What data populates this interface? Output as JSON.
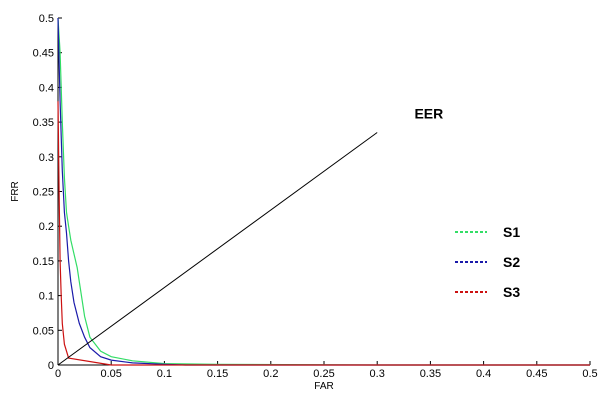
{
  "chart_data": {
    "type": "line",
    "title": "",
    "xlabel": "FAR",
    "ylabel": "FRR",
    "xlim": [
      0,
      0.5
    ],
    "ylim": [
      0,
      0.5
    ],
    "x_ticks": [
      "0",
      "0.05",
      "0.1",
      "0.15",
      "0.2",
      "0.25",
      "0.3",
      "0.35",
      "0.4",
      "0.45",
      "0.5"
    ],
    "y_ticks": [
      "0",
      "0.05",
      "0.1",
      "0.15",
      "0.2",
      "0.25",
      "0.3",
      "0.35",
      "0.4",
      "0.45",
      "0.5"
    ],
    "grid": false,
    "legend_position": "right",
    "series": [
      {
        "name": "S1",
        "color": "#33dd66",
        "x": [
          0.0,
          0.002,
          0.004,
          0.006,
          0.008,
          0.01,
          0.012,
          0.015,
          0.018,
          0.02,
          0.025,
          0.03,
          0.04,
          0.05,
          0.07,
          0.1,
          0.15,
          0.3,
          0.5
        ],
        "y": [
          0.5,
          0.45,
          0.35,
          0.27,
          0.22,
          0.2,
          0.18,
          0.16,
          0.14,
          0.12,
          0.07,
          0.04,
          0.02,
          0.012,
          0.006,
          0.002,
          0.001,
          0.0,
          0.0
        ]
      },
      {
        "name": "S2",
        "color": "#1a1aaa",
        "x": [
          0.0,
          0.002,
          0.004,
          0.006,
          0.008,
          0.01,
          0.012,
          0.015,
          0.02,
          0.025,
          0.03,
          0.04,
          0.05,
          0.07,
          0.1,
          0.12,
          0.3,
          0.5
        ],
        "y": [
          0.5,
          0.38,
          0.28,
          0.22,
          0.19,
          0.15,
          0.12,
          0.09,
          0.06,
          0.04,
          0.025,
          0.012,
          0.007,
          0.003,
          0.001,
          0.0,
          0.0,
          0.0
        ]
      },
      {
        "name": "S3",
        "color": "#cc1111",
        "x": [
          0.0,
          0.001,
          0.002,
          0.003,
          0.004,
          0.006,
          0.01,
          0.05,
          0.5
        ],
        "y": [
          0.38,
          0.25,
          0.15,
          0.1,
          0.06,
          0.03,
          0.01,
          0.0,
          0.0
        ]
      }
    ],
    "eer_line": {
      "x": [
        0,
        0.3
      ],
      "y": [
        0,
        0.335
      ]
    },
    "annotations": [
      {
        "text": "EER",
        "x": 0.335,
        "y": 0.355
      }
    ]
  }
}
